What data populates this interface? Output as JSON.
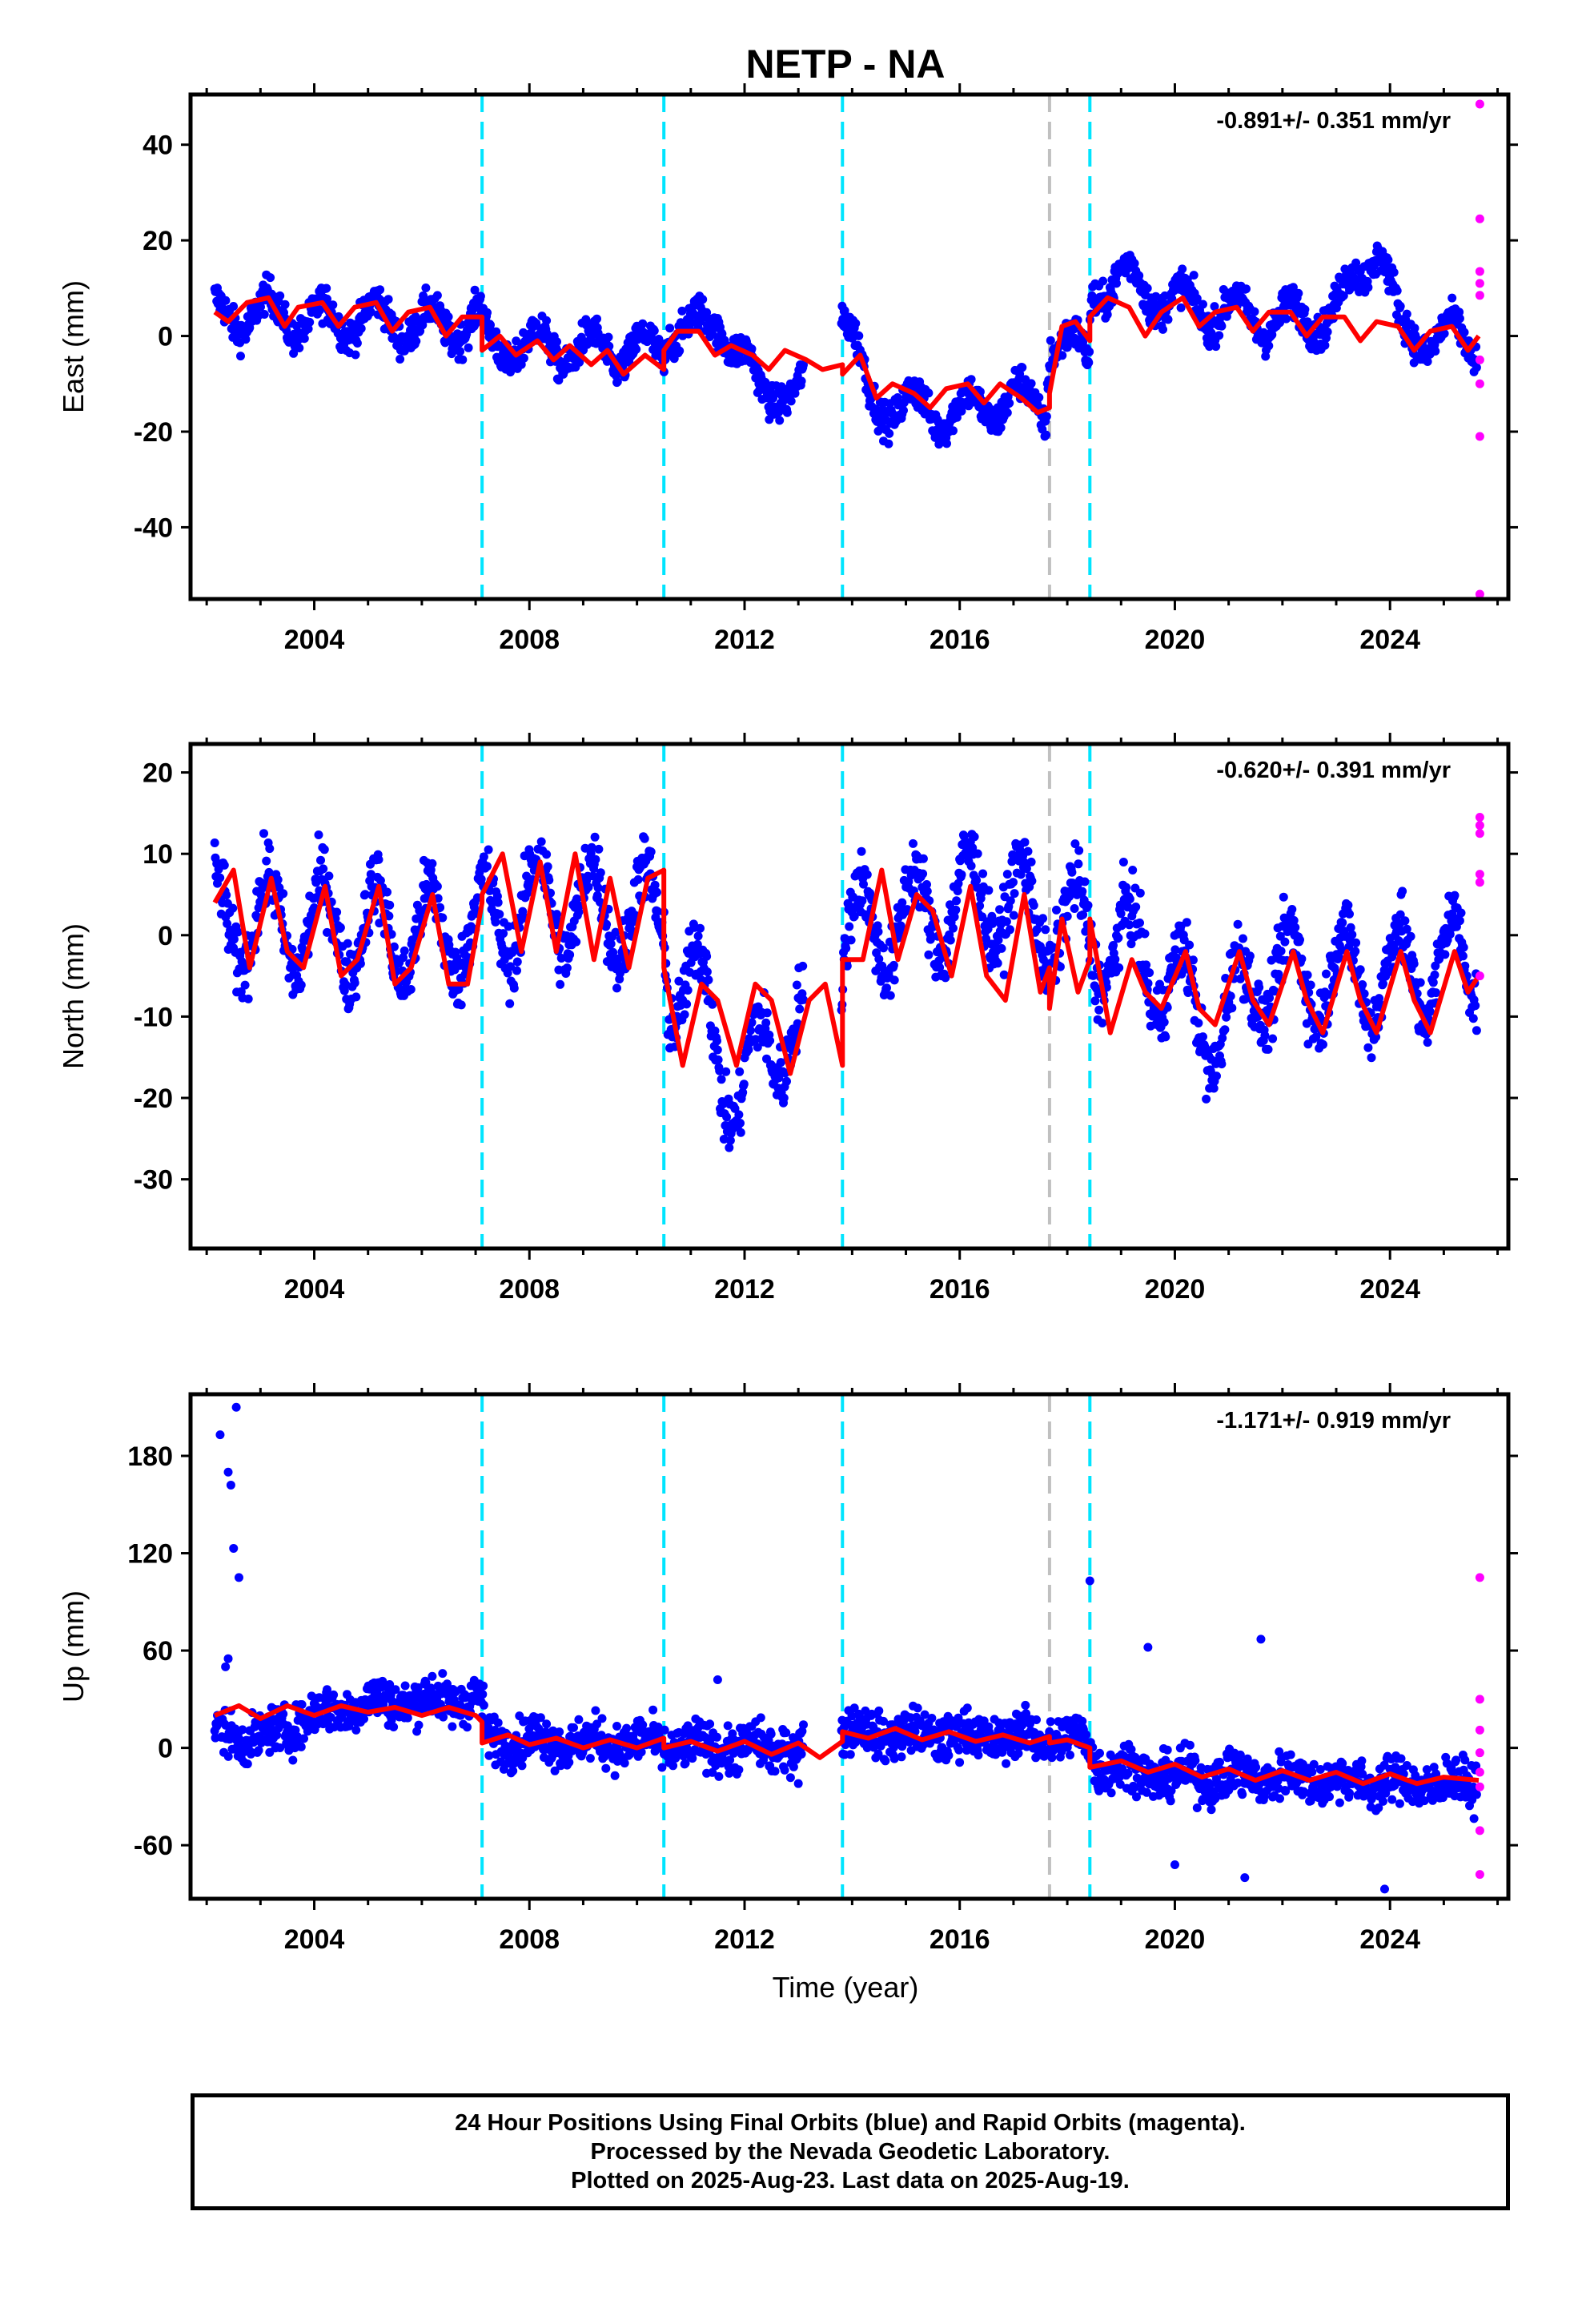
{
  "title": "NETP - NA",
  "colors": {
    "final_orbits": "#0000ff",
    "rapid_orbits": "#ff00ff",
    "model_fit": "#ff0000",
    "equipment_change": "#00e5ff",
    "other_event": "#c0c0c0",
    "frame": "#000000"
  },
  "xaxis": {
    "label": "Time (year)",
    "ticks": [
      2004,
      2008,
      2012,
      2016,
      2020,
      2024
    ],
    "minor_every_years": 1,
    "range": [
      2001.7,
      2026.2
    ]
  },
  "event_lines": {
    "dashed_cyan": [
      2007.12,
      2010.5,
      2013.82,
      2018.42
    ],
    "dashed_gray": [
      2017.67
    ]
  },
  "footer": {
    "line1": "24 Hour Positions Using Final Orbits (blue) and Rapid Orbits (magenta).",
    "line2": "Processed by the Nevada Geodetic Laboratory.",
    "line3": "Plotted on 2025-Aug-23. Last data on 2025-Aug-19."
  },
  "chart_data": [
    {
      "type": "scatter",
      "component": "East",
      "ylabel": "East (mm)",
      "ylim": [
        -55,
        50.5
      ],
      "yticks": [
        40,
        20,
        0,
        -20,
        -40
      ],
      "rate_text": "-0.891+/- 0.351 mm/yr",
      "series": [
        {
          "name": "Final Orbits",
          "trend": [
            [
              2002.2,
              4
            ],
            [
              2003.0,
              5
            ],
            [
              2004.0,
              3
            ],
            [
              2005.0,
              4
            ],
            [
              2006.0,
              2
            ],
            [
              2007.1,
              3
            ],
            [
              2007.2,
              -2
            ],
            [
              2008.0,
              -2
            ],
            [
              2009.0,
              -3
            ],
            [
              2010.0,
              -3
            ],
            [
              2010.5,
              -4
            ],
            [
              2010.6,
              3
            ],
            [
              2011.2,
              1
            ],
            [
              2011.6,
              3
            ],
            [
              2012.0,
              -5
            ],
            [
              2012.3,
              -13
            ],
            [
              2012.7,
              -10
            ],
            [
              2013.0,
              -12
            ],
            [
              2013.85,
              5
            ],
            [
              2014.3,
              -13
            ],
            [
              2015.0,
              -15
            ],
            [
              2016.0,
              -16
            ],
            [
              2017.0,
              -13
            ],
            [
              2017.6,
              -15
            ],
            [
              2017.68,
              0
            ],
            [
              2018.4,
              -5
            ],
            [
              2018.45,
              10
            ],
            [
              2019.0,
              12
            ],
            [
              2020.0,
              7
            ],
            [
              2021.0,
              5
            ],
            [
              2022.0,
              3
            ],
            [
              2023.0,
              5
            ],
            [
              2023.8,
              20
            ],
            [
              2024.2,
              0
            ],
            [
              2025.0,
              0
            ],
            [
              2025.6,
              -2
            ]
          ],
          "amp": 4,
          "spread": 2.6
        },
        {
          "name": "Rapid Orbits",
          "x": [
            2025.67,
            2025.67,
            2025.67,
            2025.67,
            2025.67,
            2025.67,
            2025.67,
            2025.67,
            2025.67
          ],
          "y": [
            48.5,
            24.5,
            13.5,
            11,
            8.5,
            -5,
            -10,
            -21,
            -54
          ]
        }
      ],
      "model_fit": {
        "name": "Model fit",
        "x": [
          2002.15,
          2002.4,
          2002.75,
          2003.15,
          2003.45,
          2003.7,
          2004.15,
          2004.45,
          2004.75,
          2005.15,
          2005.45,
          2005.75,
          2006.15,
          2006.45,
          2006.75,
          2007.12,
          2007.12,
          2007.45,
          2007.75,
          2008.15,
          2008.45,
          2008.75,
          2009.15,
          2009.45,
          2009.75,
          2010.15,
          2010.5,
          2010.5,
          2010.75,
          2011.15,
          2011.45,
          2011.75,
          2012.15,
          2012.45,
          2012.75,
          2013.15,
          2013.45,
          2013.82,
          2013.82,
          2014.15,
          2014.45,
          2014.75,
          2015.15,
          2015.45,
          2015.75,
          2016.15,
          2016.45,
          2016.75,
          2017.15,
          2017.45,
          2017.67,
          2017.67,
          2017.9,
          2018.15,
          2018.42,
          2018.42,
          2018.75,
          2019.15,
          2019.45,
          2019.75,
          2020.15,
          2020.45,
          2020.75,
          2021.15,
          2021.45,
          2021.75,
          2022.15,
          2022.45,
          2022.75,
          2023.15,
          2023.45,
          2023.75,
          2024.15,
          2024.45,
          2024.75,
          2025.15,
          2025.45,
          2025.65
        ],
        "y": [
          5,
          3,
          7,
          8,
          2,
          6,
          7,
          2,
          6,
          7,
          1,
          5,
          6,
          0,
          4,
          4,
          -3,
          0,
          -4,
          -1,
          -5,
          -2,
          -6,
          -3,
          -8,
          -4,
          -7,
          -3,
          1,
          1,
          -4,
          -2,
          -4,
          -7,
          -3,
          -5,
          -7,
          -6,
          -8,
          -4,
          -13,
          -10,
          -12,
          -15,
          -11,
          -10,
          -14,
          -10,
          -13,
          -16,
          -15,
          -12,
          2,
          3,
          -1,
          4,
          8,
          6,
          0,
          5,
          8,
          2,
          5,
          6,
          1,
          5,
          5,
          0,
          4,
          4,
          -1,
          3,
          2,
          -3,
          1,
          2,
          -3,
          0
        ]
      }
    },
    {
      "type": "scatter",
      "component": "North",
      "ylabel": "North (mm)",
      "ylim": [
        -38.5,
        23.5
      ],
      "yticks": [
        20,
        10,
        0,
        -10,
        -20,
        -30
      ],
      "rate_text": "-0.620+/- 0.391 mm/yr",
      "series": [
        {
          "name": "Final Orbits",
          "trend": [
            [
              2002.2,
              2
            ],
            [
              2004.0,
              1
            ],
            [
              2006.0,
              0
            ],
            [
              2007.1,
              1
            ],
            [
              2008.0,
              4
            ],
            [
              2009.5,
              3
            ],
            [
              2010.5,
              2
            ],
            [
              2010.6,
              -5
            ],
            [
              2011.3,
              -8
            ],
            [
              2011.9,
              -22
            ],
            [
              2012.4,
              -12
            ],
            [
              2013.0,
              -12
            ],
            [
              2013.8,
              -10
            ],
            [
              2013.85,
              0
            ],
            [
              2015.0,
              2
            ],
            [
              2016.5,
              5
            ],
            [
              2017.6,
              2
            ],
            [
              2018.4,
              0
            ],
            [
              2019.5,
              -3
            ],
            [
              2020.8,
              -12
            ],
            [
              2021.5,
              -5
            ],
            [
              2023.0,
              -5
            ],
            [
              2024.0,
              -5
            ],
            [
              2025.6,
              -3
            ]
          ],
          "amp": 6,
          "spread": 3
        },
        {
          "name": "Rapid Orbits",
          "x": [
            2025.67,
            2025.67,
            2025.67,
            2025.67,
            2025.67,
            2025.67
          ],
          "y": [
            14.5,
            13.5,
            12.5,
            7.5,
            6.5,
            -5
          ]
        }
      ],
      "model_fit": {
        "name": "Model fit",
        "x": [
          2002.15,
          2002.5,
          2002.8,
          2003.2,
          2003.5,
          2003.8,
          2004.2,
          2004.5,
          2004.8,
          2005.2,
          2005.5,
          2005.8,
          2006.2,
          2006.5,
          2006.85,
          2007.12,
          2007.12,
          2007.5,
          2007.85,
          2008.2,
          2008.5,
          2008.85,
          2009.2,
          2009.5,
          2009.85,
          2010.2,
          2010.5,
          2010.5,
          2010.85,
          2011.2,
          2011.5,
          2011.85,
          2012.2,
          2012.5,
          2012.85,
          2013.2,
          2013.5,
          2013.82,
          2013.82,
          2014.2,
          2014.55,
          2014.85,
          2015.2,
          2015.5,
          2015.85,
          2016.2,
          2016.5,
          2016.85,
          2017.2,
          2017.5,
          2017.67,
          2017.67,
          2017.9,
          2018.2,
          2018.42,
          2018.42,
          2018.8,
          2019.2,
          2019.45,
          2019.75,
          2020.2,
          2020.45,
          2020.75,
          2021.2,
          2021.45,
          2021.75,
          2022.2,
          2022.45,
          2022.75,
          2023.2,
          2023.45,
          2023.75,
          2024.2,
          2024.45,
          2024.75,
          2025.2,
          2025.45,
          2025.65
        ],
        "y": [
          4,
          8,
          -4,
          7,
          -2,
          -4,
          6,
          -5,
          -3,
          6,
          -6,
          -4,
          5,
          -6,
          -6,
          4,
          5,
          10,
          -2,
          9,
          -2,
          10,
          -3,
          7,
          -4,
          7,
          8,
          -4,
          -16,
          -6,
          -8,
          -16,
          -6,
          -8,
          -17,
          -8,
          -6,
          -16,
          -3,
          -3,
          8,
          -3,
          5,
          3,
          -5,
          6,
          -5,
          -8,
          5,
          -7,
          -4,
          -9,
          2,
          -7,
          -3,
          2,
          -12,
          -3,
          -7,
          -9,
          -2,
          -9,
          -11,
          -2,
          -8,
          -11,
          -2,
          -8,
          -12,
          -2,
          -8,
          -12,
          -2,
          -8,
          -12,
          -2,
          -7,
          -5
        ]
      }
    },
    {
      "type": "scatter",
      "component": "Up",
      "ylabel": "Up (mm)",
      "ylim": [
        -93,
        218
      ],
      "yticks": [
        180,
        120,
        60,
        0,
        -60
      ],
      "rate_text": "-1.171+/- 0.919 mm/yr",
      "series": [
        {
          "name": "Final Orbits",
          "trend": [
            [
              2002.2,
              10
            ],
            [
              2003.0,
              5
            ],
            [
              2004.0,
              20
            ],
            [
              2005.0,
              28
            ],
            [
              2006.5,
              30
            ],
            [
              2007.1,
              30
            ],
            [
              2007.2,
              5
            ],
            [
              2008.0,
              5
            ],
            [
              2009.0,
              3
            ],
            [
              2010.0,
              3
            ],
            [
              2011.0,
              0
            ],
            [
              2012.0,
              0
            ],
            [
              2013.0,
              0
            ],
            [
              2013.85,
              10
            ],
            [
              2015.0,
              8
            ],
            [
              2016.0,
              7
            ],
            [
              2017.0,
              7
            ],
            [
              2018.4,
              5
            ],
            [
              2018.5,
              -10
            ],
            [
              2020.0,
              -18
            ],
            [
              2022.0,
              -18
            ],
            [
              2024.0,
              -22
            ],
            [
              2025.6,
              -22
            ]
          ],
          "amp": 4,
          "spread": 10,
          "outliers": [
            [
              2002.25,
              193
            ],
            [
              2002.4,
              170
            ],
            [
              2002.45,
              162
            ],
            [
              2002.55,
              210
            ],
            [
              2002.5,
              123
            ],
            [
              2002.6,
              105
            ],
            [
              2002.4,
              55
            ],
            [
              2002.35,
              50
            ],
            [
              2018.42,
              103
            ],
            [
              2021.6,
              67
            ],
            [
              2019.5,
              62
            ],
            [
              2023.9,
              -87
            ],
            [
              2021.3,
              -80
            ],
            [
              2020.0,
              -72
            ],
            [
              2013.0,
              -22
            ],
            [
              2011.5,
              42
            ]
          ]
        },
        {
          "name": "Rapid Orbits",
          "x": [
            2025.67,
            2025.67,
            2025.67,
            2025.67,
            2025.67,
            2025.67,
            2025.67,
            2025.67
          ],
          "y": [
            105,
            30,
            11,
            -3,
            -15,
            -24,
            -51,
            -78
          ]
        }
      ],
      "model_fit": {
        "name": "Model fit",
        "x": [
          2002.15,
          2002.6,
          2003.0,
          2003.5,
          2004.0,
          2004.5,
          2005.0,
          2005.5,
          2006.0,
          2006.5,
          2007.0,
          2007.12,
          2007.12,
          2007.6,
          2008.0,
          2008.5,
          2009.0,
          2009.5,
          2010.0,
          2010.5,
          2010.5,
          2011.0,
          2011.5,
          2012.0,
          2012.5,
          2013.0,
          2013.4,
          2013.82,
          2013.82,
          2014.3,
          2014.8,
          2015.3,
          2015.8,
          2016.3,
          2016.8,
          2017.3,
          2017.67,
          2017.67,
          2018.0,
          2018.42,
          2018.42,
          2019.0,
          2019.5,
          2020.0,
          2020.5,
          2021.0,
          2021.5,
          2022.0,
          2022.5,
          2023.0,
          2023.5,
          2024.0,
          2024.5,
          2025.0,
          2025.65
        ],
        "y": [
          20,
          26,
          18,
          26,
          20,
          26,
          22,
          25,
          20,
          25,
          20,
          16,
          3,
          8,
          2,
          6,
          0,
          5,
          0,
          6,
          0,
          4,
          -2,
          4,
          -4,
          3,
          -6,
          4,
          10,
          6,
          12,
          5,
          10,
          4,
          8,
          3,
          7,
          3,
          5,
          0,
          -12,
          -8,
          -15,
          -10,
          -18,
          -13,
          -20,
          -14,
          -20,
          -15,
          -22,
          -16,
          -22,
          -18,
          -20
        ]
      }
    }
  ]
}
